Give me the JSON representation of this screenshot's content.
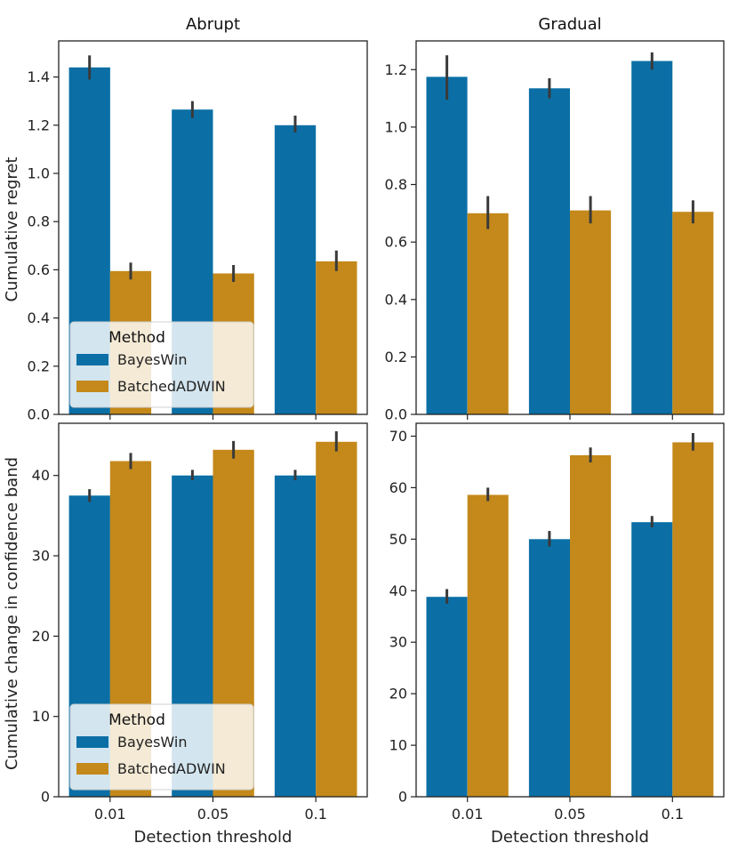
{
  "figure": {
    "ylabel_top": "Cumulative regret",
    "ylabel_bottom": "Cumulative change in confidence band",
    "xlabel": "Detection threshold"
  },
  "colors": {
    "BayesWin": "#0b6fa6",
    "BatchedADWIN": "#c4891a",
    "errorbar": "#3a3a3a"
  },
  "legend_labels": {
    "title": "Method",
    "bayeswin": "BayesWin",
    "batchedadwin": "BatchedADWIN"
  },
  "chart_data": [
    {
      "type": "bar",
      "title": "Abrupt",
      "ylabel": "Cumulative regret",
      "xlabel": "",
      "categories": [
        "0.01",
        "0.05",
        "0.1"
      ],
      "ylim": [
        0,
        1.55
      ],
      "yticks": [
        0.0,
        0.2,
        0.4,
        0.6,
        0.8,
        1.0,
        1.2,
        1.4
      ],
      "ytick_labels": [
        "0.0",
        "0.2",
        "0.4",
        "0.6",
        "0.8",
        "1.0",
        "1.2",
        "1.4"
      ],
      "show_xticks": false,
      "legend": "lower-left",
      "series": [
        {
          "name": "BayesWin",
          "values": [
            1.44,
            1.265,
            1.2
          ],
          "err": [
            [
              1.39,
              1.49
            ],
            [
              1.23,
              1.3
            ],
            [
              1.17,
              1.24
            ]
          ]
        },
        {
          "name": "BatchedADWIN",
          "values": [
            0.595,
            0.585,
            0.635
          ],
          "err": [
            [
              0.56,
              0.63
            ],
            [
              0.55,
              0.62
            ],
            [
              0.595,
              0.68
            ]
          ]
        }
      ]
    },
    {
      "type": "bar",
      "title": "Gradual",
      "ylabel": "",
      "xlabel": "",
      "categories": [
        "0.01",
        "0.05",
        "0.1"
      ],
      "ylim": [
        0,
        1.3
      ],
      "yticks": [
        0.0,
        0.2,
        0.4,
        0.6,
        0.8,
        1.0,
        1.2
      ],
      "ytick_labels": [
        "0.0",
        "0.2",
        "0.4",
        "0.6",
        "0.8",
        "1.0",
        "1.2"
      ],
      "show_xticks": false,
      "legend": "none",
      "series": [
        {
          "name": "BayesWin",
          "values": [
            1.175,
            1.135,
            1.23
          ],
          "err": [
            [
              1.095,
              1.25
            ],
            [
              1.1,
              1.17
            ],
            [
              1.2,
              1.26
            ]
          ]
        },
        {
          "name": "BatchedADWIN",
          "values": [
            0.7,
            0.71,
            0.705
          ],
          "err": [
            [
              0.645,
              0.76
            ],
            [
              0.665,
              0.76
            ],
            [
              0.665,
              0.745
            ]
          ]
        }
      ]
    },
    {
      "type": "bar",
      "title": "",
      "ylabel": "Cumulative change in confidence band",
      "xlabel": "Detection threshold",
      "categories": [
        "0.01",
        "0.05",
        "0.1"
      ],
      "ylim": [
        0,
        46.5
      ],
      "yticks": [
        0,
        10,
        20,
        30,
        40
      ],
      "ytick_labels": [
        "0",
        "10",
        "20",
        "30",
        "40"
      ],
      "show_xticks": true,
      "legend": "lower-left",
      "series": [
        {
          "name": "BayesWin",
          "values": [
            37.5,
            40.0,
            40.0
          ],
          "err": [
            [
              36.7,
              38.3
            ],
            [
              39.4,
              40.7
            ],
            [
              39.4,
              40.7
            ]
          ]
        },
        {
          "name": "BatchedADWIN",
          "values": [
            41.8,
            43.2,
            44.2
          ],
          "err": [
            [
              40.8,
              42.8
            ],
            [
              42.1,
              44.3
            ],
            [
              43.0,
              45.5
            ]
          ]
        }
      ]
    },
    {
      "type": "bar",
      "title": "",
      "ylabel": "",
      "xlabel": "Detection threshold",
      "categories": [
        "0.01",
        "0.05",
        "0.1"
      ],
      "ylim": [
        0,
        72.5
      ],
      "yticks": [
        0,
        10,
        20,
        30,
        40,
        50,
        60,
        70
      ],
      "ytick_labels": [
        "0",
        "10",
        "20",
        "30",
        "40",
        "50",
        "60",
        "70"
      ],
      "show_xticks": true,
      "legend": "none",
      "series": [
        {
          "name": "BayesWin",
          "values": [
            38.8,
            50.0,
            53.3
          ],
          "err": [
            [
              37.5,
              40.3
            ],
            [
              48.6,
              51.6
            ],
            [
              52.3,
              54.5
            ]
          ]
        },
        {
          "name": "BatchedADWIN",
          "values": [
            58.6,
            66.3,
            68.8
          ],
          "err": [
            [
              57.4,
              60.0
            ],
            [
              64.9,
              67.8
            ],
            [
              67.2,
              70.6
            ]
          ]
        }
      ]
    }
  ]
}
